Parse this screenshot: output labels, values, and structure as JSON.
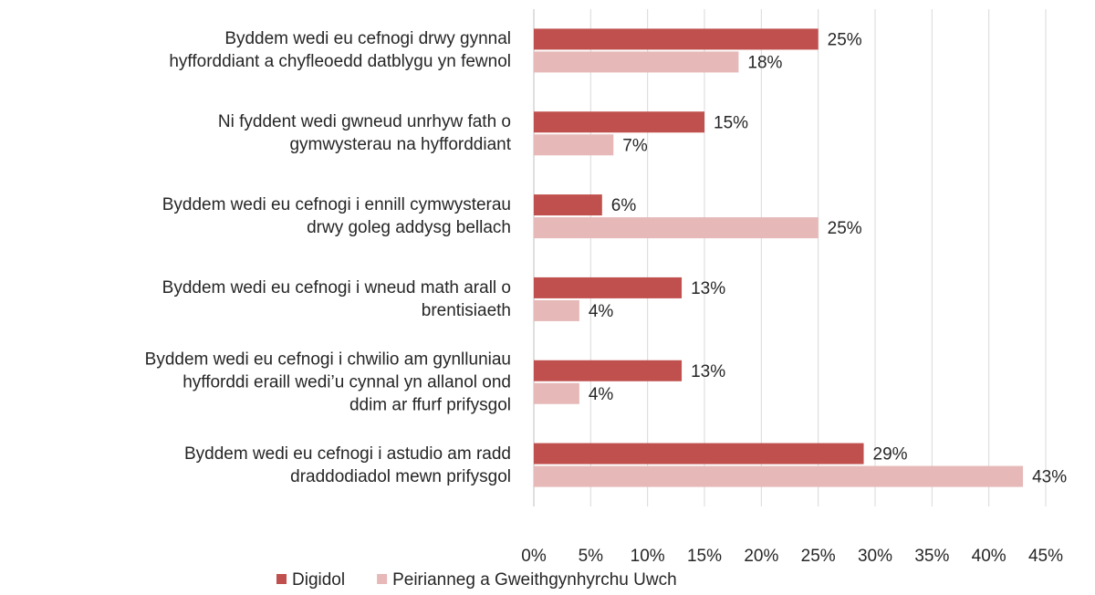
{
  "chart_data": {
    "type": "hbar",
    "categories": [
      "Byddem wedi eu cefnogi drwy gynnal\nhyfforddiant a chyfleoedd datblygu yn fewnol",
      "Ni fyddent wedi gwneud unrhyw fath o\ngymwysterau na hyfforddiant",
      "Byddem wedi eu cefnogi i ennill cymwysterau\ndrwy goleg addysg bellach",
      "Byddem wedi eu cefnogi i wneud math arall o\nbrentisiaeth",
      "Byddem wedi eu cefnogi i chwilio am gynlluniau\nhyfforddi eraill wedi’u cynnal yn allanol ond\nddim ar ffurf prifysgol",
      "Byddem wedi eu cefnogi i astudio am radd\ndraddodiadol mewn prifysgol"
    ],
    "series": [
      {
        "name": "Digidol",
        "color": "#c0504d",
        "values": [
          25,
          15,
          6,
          13,
          13,
          29
        ],
        "value_labels": [
          "25%",
          "15%",
          "6%",
          "13%",
          "13%",
          "29%"
        ]
      },
      {
        "name": "Peirianneg a Gweithgynhyrchu Uwch",
        "color": "#e6b9b8",
        "values": [
          18,
          7,
          25,
          4,
          4,
          43
        ],
        "value_labels": [
          "18%",
          "7%",
          "25%",
          "4%",
          "4%",
          "43%"
        ]
      }
    ],
    "xlim": [
      0,
      45
    ],
    "xticks": [
      {
        "value": 0,
        "label": "0%"
      },
      {
        "value": 5,
        "label": "5%"
      },
      {
        "value": 10,
        "label": "10%"
      },
      {
        "value": 15,
        "label": "15%"
      },
      {
        "value": 20,
        "label": "20%"
      },
      {
        "value": 25,
        "label": "25%"
      },
      {
        "value": 30,
        "label": "30%"
      },
      {
        "value": 35,
        "label": "35%"
      },
      {
        "value": 40,
        "label": "40%"
      },
      {
        "value": 45,
        "label": "45%"
      }
    ],
    "grid": true
  }
}
